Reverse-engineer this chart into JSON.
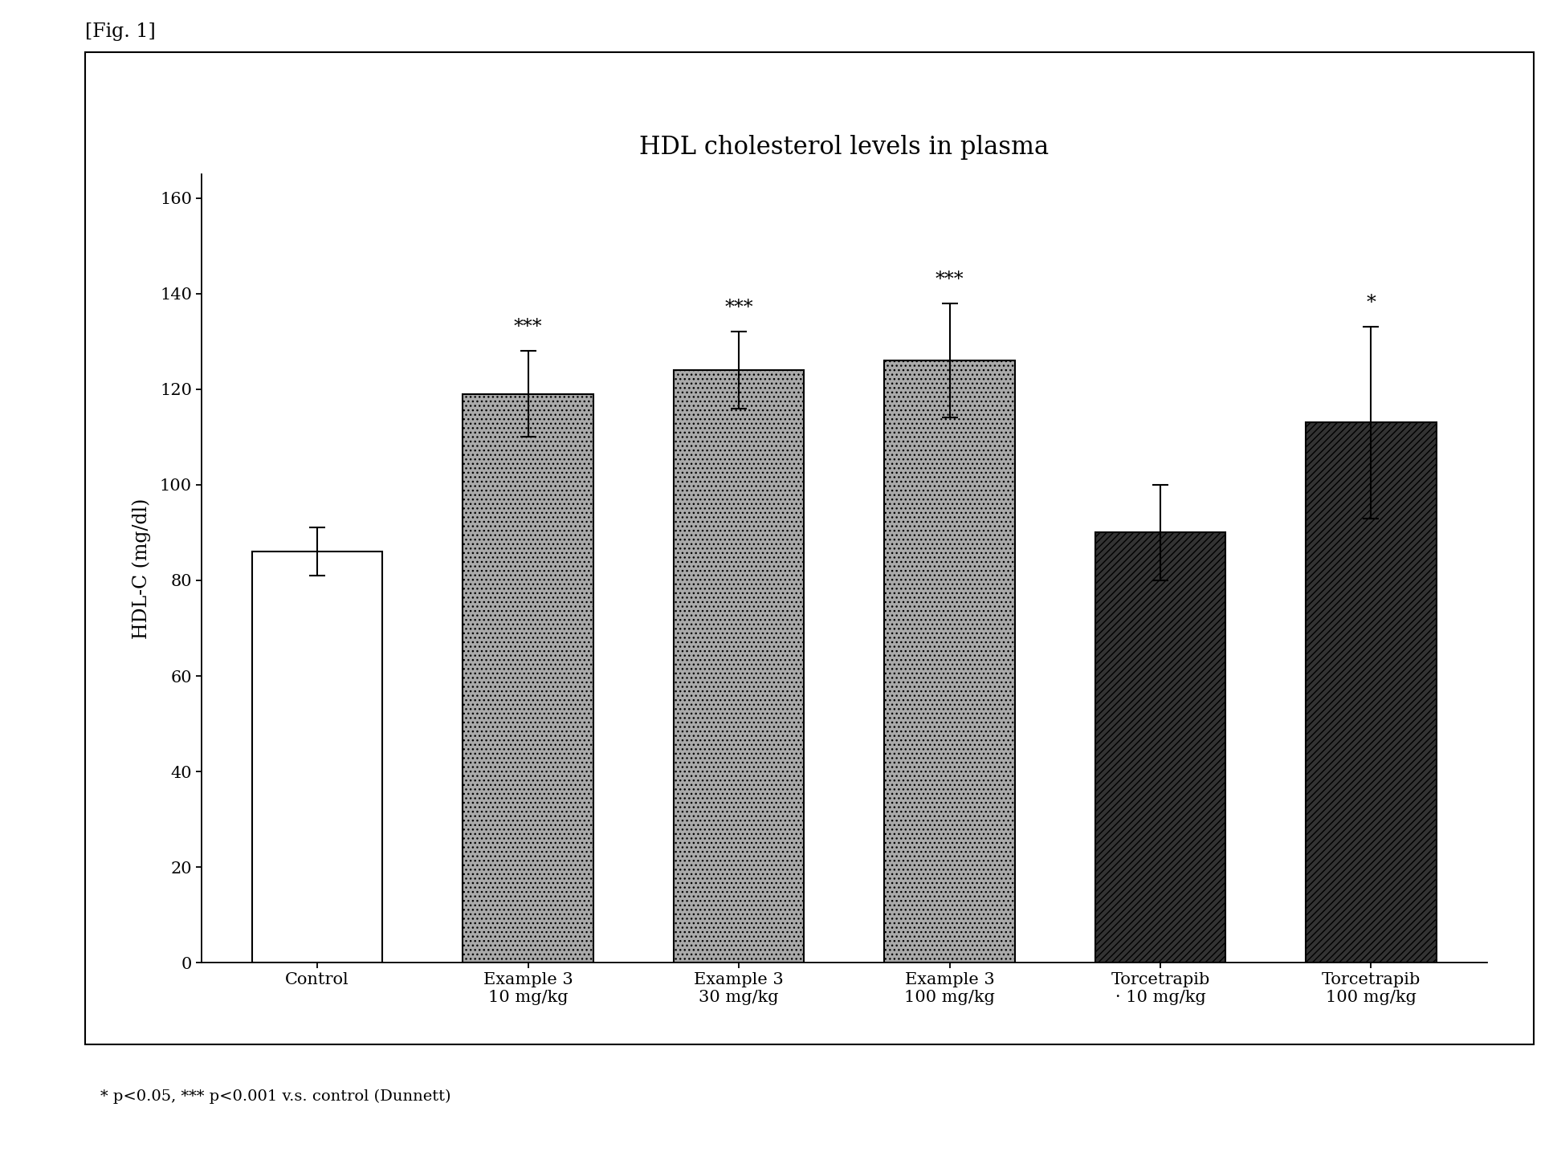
{
  "title": "HDL cholesterol levels in plasma",
  "ylabel": "HDL-C (mg/dl)",
  "categories": [
    "Control",
    "Example 3\n10 mg/kg",
    "Example 3\n30 mg/kg",
    "Example 3\n100 mg/kg",
    "Torcetrapib\n· 10 mg/kg",
    "Torcetrapib\n100 mg/kg"
  ],
  "values": [
    86,
    119,
    124,
    126,
    90,
    113
  ],
  "errors": [
    5,
    9,
    8,
    12,
    10,
    20
  ],
  "bar_facecolors": [
    "white",
    "#aaaaaa",
    "#aaaaaa",
    "#aaaaaa",
    "#333333",
    "#333333"
  ],
  "bar_edgecolors": [
    "black",
    "black",
    "black",
    "black",
    "black",
    "black"
  ],
  "significance": [
    "",
    "***",
    "***",
    "***",
    "",
    "*"
  ],
  "ylim": [
    0,
    165
  ],
  "yticks": [
    0,
    20,
    40,
    60,
    80,
    100,
    120,
    140,
    160
  ],
  "fig_label": "[Fig. 1]",
  "footnote": "* p<0.05, *** p<0.001 v.s. control (Dunnett)",
  "background_color": "#ffffff",
  "title_fontsize": 22,
  "axis_fontsize": 17,
  "tick_fontsize": 15,
  "sig_fontsize": 17,
  "footnote_fontsize": 14,
  "figlabel_fontsize": 17,
  "bar_width": 0.62
}
